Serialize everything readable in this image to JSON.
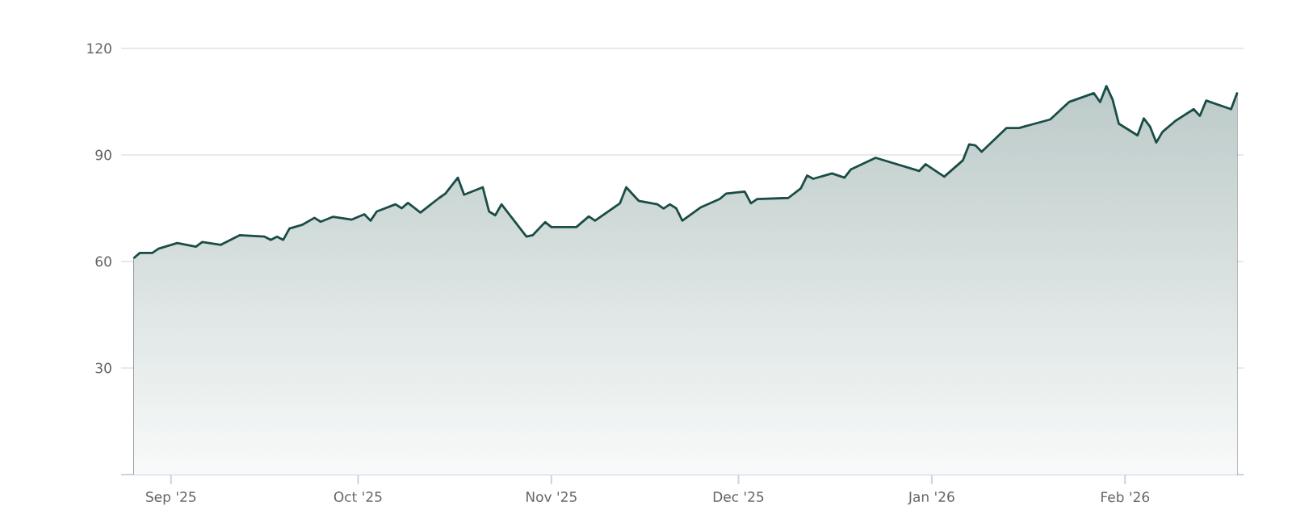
{
  "chart_data": {
    "type": "area",
    "x": [
      "2025-08-26",
      "2025-08-27",
      "2025-08-29",
      "2025-08-30",
      "2025-09-02",
      "2025-09-05",
      "2025-09-06",
      "2025-09-09",
      "2025-09-12",
      "2025-09-16",
      "2025-09-17",
      "2025-09-18",
      "2025-09-19",
      "2025-09-20",
      "2025-09-22",
      "2025-09-24",
      "2025-09-25",
      "2025-09-27",
      "2025-09-30",
      "2025-10-02",
      "2025-10-03",
      "2025-10-04",
      "2025-10-07",
      "2025-10-08",
      "2025-10-09",
      "2025-10-11",
      "2025-10-14",
      "2025-10-15",
      "2025-10-17",
      "2025-10-18",
      "2025-10-21",
      "2025-10-22",
      "2025-10-23",
      "2025-10-24",
      "2025-10-28",
      "2025-10-29",
      "2025-10-31",
      "2025-11-01",
      "2025-11-05",
      "2025-11-07",
      "2025-11-08",
      "2025-11-12",
      "2025-11-13",
      "2025-11-15",
      "2025-11-18",
      "2025-11-19",
      "2025-11-20",
      "2025-11-21",
      "2025-11-22",
      "2025-11-25",
      "2025-11-28",
      "2025-11-29",
      "2025-12-02",
      "2025-12-03",
      "2025-12-04",
      "2025-12-09",
      "2025-12-11",
      "2025-12-12",
      "2025-12-13",
      "2025-12-16",
      "2025-12-18",
      "2025-12-19",
      "2025-12-23",
      "2025-12-30",
      "2025-12-31",
      "2026-01-03",
      "2026-01-06",
      "2026-01-07",
      "2026-01-08",
      "2026-01-09",
      "2026-01-13",
      "2026-01-15",
      "2026-01-20",
      "2026-01-23",
      "2026-01-27",
      "2026-01-28",
      "2026-01-29",
      "2026-01-30",
      "2026-01-31",
      "2026-02-03",
      "2026-02-04",
      "2026-02-05",
      "2026-02-06",
      "2026-02-07",
      "2026-02-09",
      "2026-02-12",
      "2026-02-13",
      "2026-02-14",
      "2026-02-18",
      "2026-02-19"
    ],
    "series": [
      {
        "color": "#1b4d47",
        "values": [
          60.9,
          62.4,
          62.4,
          63.6,
          65.2,
          64.2,
          65.5,
          64.7,
          67.4,
          67.0,
          66.1,
          67.0,
          66.1,
          69.3,
          70.3,
          72.3,
          71.2,
          72.6,
          71.8,
          73.3,
          71.5,
          74.1,
          76.1,
          75.0,
          76.5,
          73.8,
          77.9,
          79.1,
          83.6,
          78.8,
          80.9,
          74.1,
          73.0,
          76.1,
          67.0,
          67.4,
          71.1,
          69.7,
          69.7,
          72.7,
          71.5,
          76.4,
          80.9,
          77.1,
          76.1,
          74.9,
          76.1,
          75.0,
          71.5,
          75.3,
          77.6,
          79.1,
          79.7,
          76.4,
          77.6,
          77.9,
          80.6,
          84.2,
          83.3,
          84.8,
          83.6,
          85.9,
          89.2,
          85.5,
          87.4,
          83.9,
          88.5,
          93.0,
          92.7,
          90.9,
          97.6,
          97.6,
          100.0,
          104.9,
          107.4,
          104.9,
          109.4,
          105.6,
          98.8,
          95.5,
          100.3,
          98.0,
          93.5,
          96.5,
          99.5,
          102.9,
          101.0,
          105.3,
          102.9,
          107.6
        ]
      }
    ],
    "xlim": [
      "2025-08-24",
      "2026-02-20"
    ],
    "xticks": [
      {
        "value": "2025-09-01",
        "label": "Sep '25"
      },
      {
        "value": "2025-10-01",
        "label": "Oct '25"
      },
      {
        "value": "2025-11-01",
        "label": "Nov '25"
      },
      {
        "value": "2025-12-01",
        "label": "Dec '25"
      },
      {
        "value": "2026-01-01",
        "label": "Jan '26"
      },
      {
        "value": "2026-02-01",
        "label": "Feb '26"
      }
    ],
    "ylim": [
      0,
      120
    ],
    "yticks": [
      30,
      60,
      90,
      120
    ],
    "grid": "y"
  }
}
